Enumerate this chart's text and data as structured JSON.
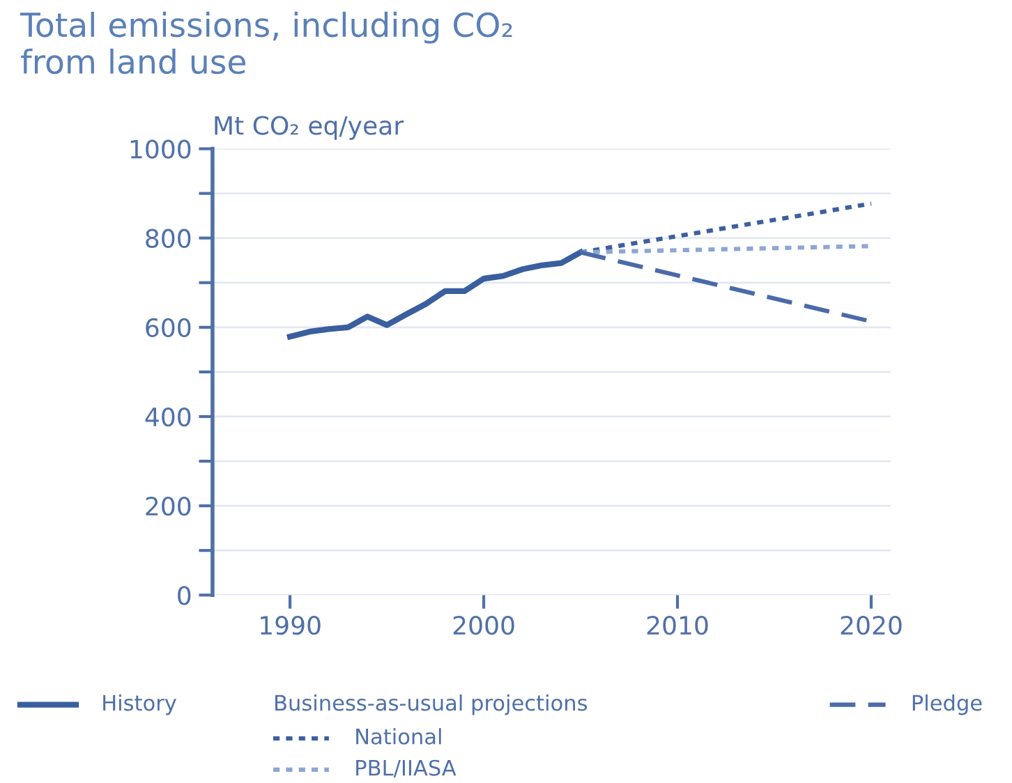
{
  "chart_data": {
    "type": "line",
    "title": "Total emissions, including CO₂\nfrom land use",
    "ylabel": "Mt CO₂ eq/year",
    "legend_title": "Business-as-usual projections",
    "xlim": [
      1986,
      2021
    ],
    "xticks": [
      1990,
      2000,
      2010,
      2020
    ],
    "ylim": [
      0,
      1000
    ],
    "yticks": [
      0,
      {
        "value": 100,
        "label": null
      },
      200,
      {
        "value": 300,
        "label": null
      },
      400,
      {
        "value": 500,
        "label": null
      },
      600,
      {
        "value": 700,
        "label": null
      },
      800,
      {
        "value": 900,
        "label": null
      },
      1000
    ],
    "grid": "y",
    "legend": "bottom",
    "series": [
      {
        "name": "History",
        "color": "#3a5f9f",
        "line_style": "solid",
        "x": [
          1990,
          1991,
          1992,
          1993,
          1994,
          1995,
          1996,
          1997,
          1998,
          1999,
          2000,
          2001,
          2002,
          2003,
          2004,
          2005
        ],
        "values": [
          579,
          590,
          596,
          600,
          624,
          605,
          629,
          652,
          681,
          681,
          709,
          715,
          730,
          739,
          744,
          768
        ]
      },
      {
        "name": "National",
        "color": "#3d5fa0",
        "line_style": "dotted",
        "x": [
          2005,
          2020
        ],
        "values": [
          768,
          877
        ]
      },
      {
        "name": "PBL/IIASA",
        "color": "#8ea6d0",
        "line_style": "dotted",
        "x": [
          2005,
          2020
        ],
        "values": [
          768,
          782
        ]
      },
      {
        "name": "Pledge",
        "color": "#4a6aa8",
        "line_style": "dashed",
        "x": [
          2005,
          2020
        ],
        "values": [
          768,
          613
        ]
      }
    ]
  }
}
